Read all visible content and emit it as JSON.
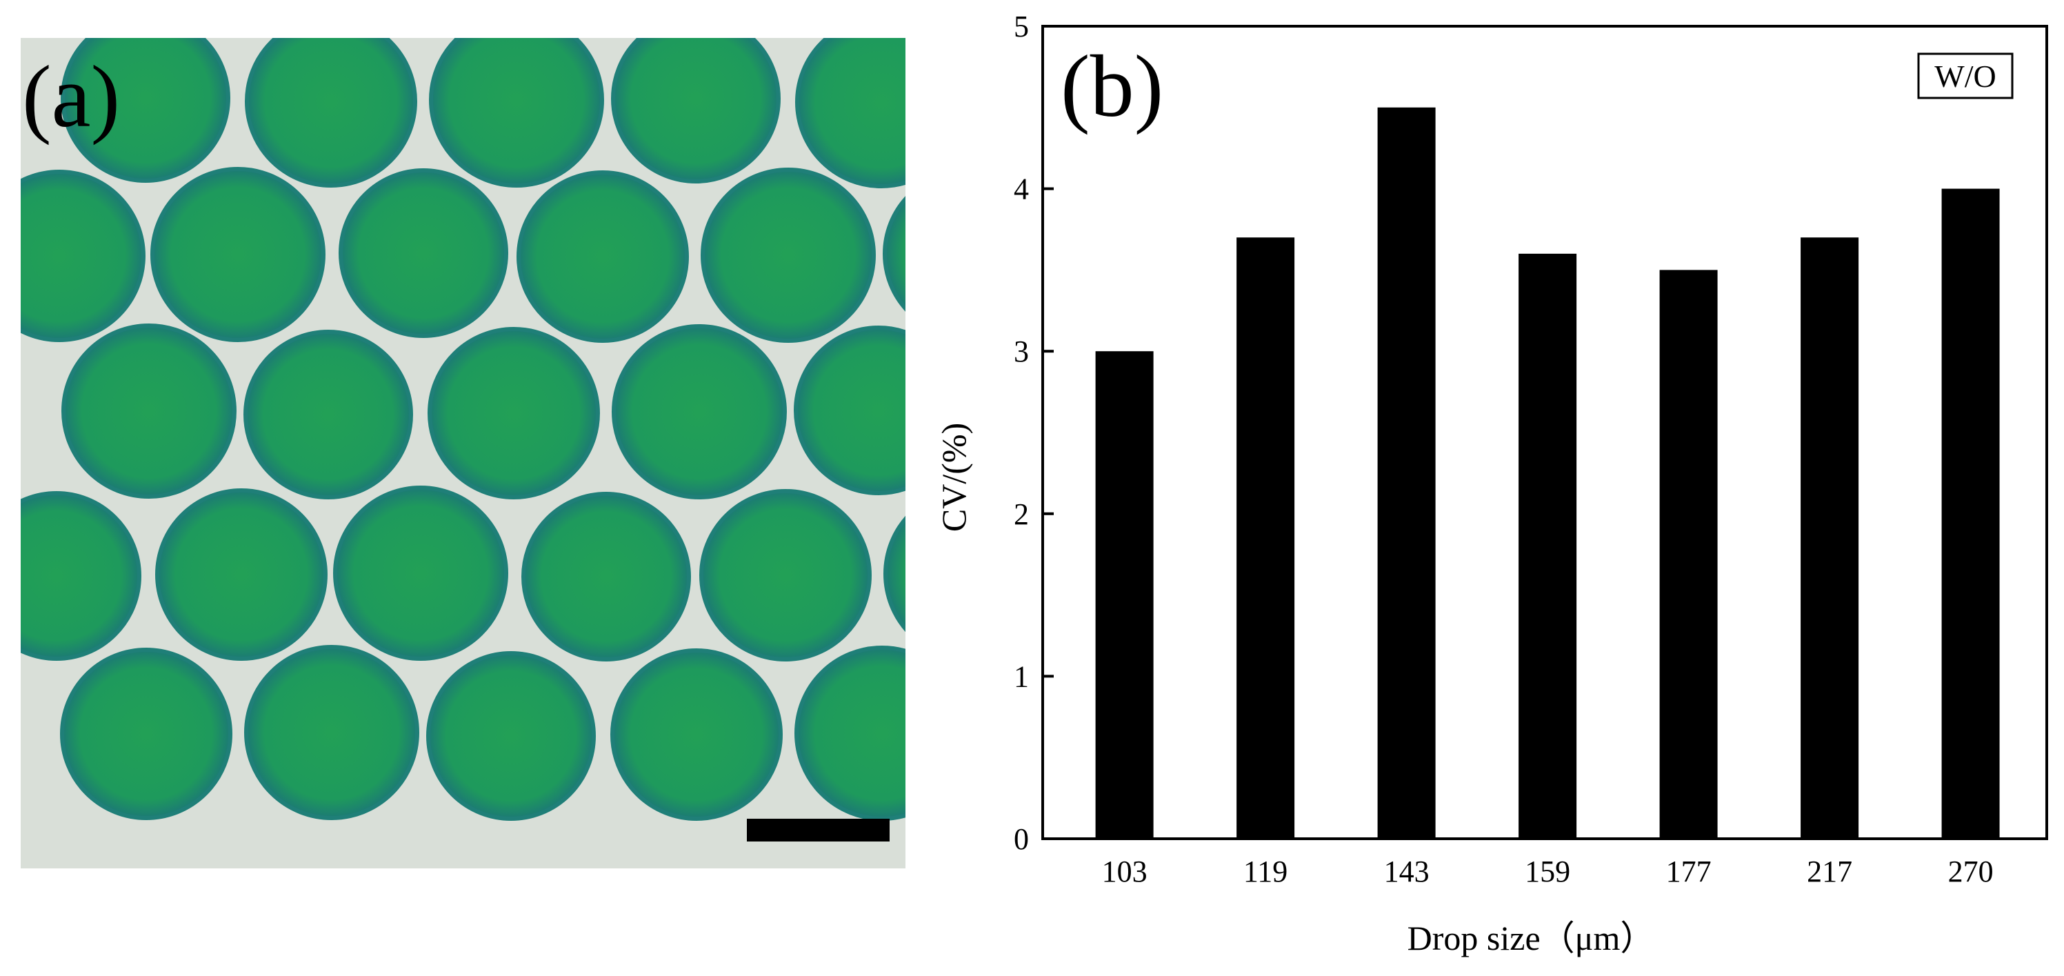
{
  "panel_a": {
    "label": "(a)",
    "colors": {
      "background": "#d9dfd8",
      "droplet": "#1f9a5c",
      "droplet_rim": "#1f7f78",
      "scale_bar": "#000000"
    }
  },
  "chart_data": {
    "type": "bar",
    "panel_label": "(b)",
    "legend": "W/O",
    "legend_placement": "top-right",
    "categories": [
      "103",
      "119",
      "143",
      "159",
      "177",
      "217",
      "270"
    ],
    "values": [
      3.0,
      3.7,
      4.5,
      3.6,
      3.5,
      3.7,
      4.0
    ],
    "xlabel": "Drop size（μm）",
    "ylabel": "CV/(%)",
    "ylim": [
      0,
      5
    ],
    "yticks": [
      "0",
      "1",
      "2",
      "3",
      "4",
      "5"
    ],
    "grid": false,
    "bar_color": "#000000"
  }
}
